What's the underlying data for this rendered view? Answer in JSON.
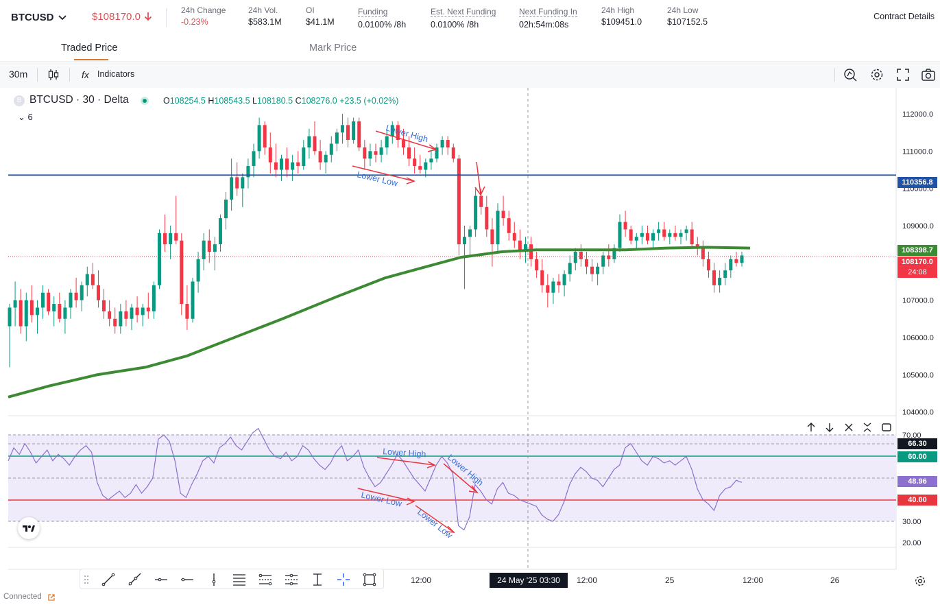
{
  "header": {
    "symbol": "BTCUSD",
    "last_price": "$108170.0",
    "stats": [
      {
        "label": "24h Change",
        "value": "-0.23%",
        "negative": true
      },
      {
        "label": "24h Vol.",
        "value": "$583.1M"
      },
      {
        "label": "OI",
        "value": "$41.1M"
      },
      {
        "label": "Funding",
        "value": "0.0100% /8h",
        "dotted": true
      },
      {
        "label": "Est. Next Funding",
        "value": "0.0100% /8h",
        "dotted": true
      },
      {
        "label": "Next Funding In",
        "value": "02h:54m:08s",
        "dotted": true
      },
      {
        "label": "24h High",
        "value": "$109451.0"
      },
      {
        "label": "24h Low",
        "value": "$107152.5"
      }
    ],
    "contract_details": "Contract Details"
  },
  "tabs": [
    {
      "label": "Traded Price",
      "active": true
    },
    {
      "label": "Mark Price",
      "active": false
    }
  ],
  "toolbar": {
    "timeframe": "30m",
    "indicators_label": "Indicators"
  },
  "legend": {
    "badge": "B",
    "title": "BTCUSD · 30 · Delta",
    "open_key": "O",
    "open": "108254.5",
    "high_key": "H",
    "high": "108543.5",
    "low_key": "L",
    "low": "108180.5",
    "close_key": "C",
    "close": "108276.0",
    "change": "+23.5 (+0.02%)",
    "collapsed_count": "6"
  },
  "price_axis": {
    "ticks": [
      "112000.0",
      "111000.0",
      "110000.0",
      "109000.0",
      "108000.0",
      "107000.0",
      "106000.0",
      "105000.0",
      "104000.0"
    ],
    "tags": {
      "level_line": "110356.8",
      "ma_value": "108398.7",
      "current": "108170.0",
      "countdown": "24:08"
    }
  },
  "rsi_axis": {
    "ticks": [
      "70.00",
      "30.00",
      "20.00"
    ],
    "tags": {
      "upper_band": "66.30",
      "upper_level": "60.00",
      "rsi_value": "48.96",
      "lower_level": "40.00"
    }
  },
  "annotations": {
    "price_lower_high": "Lower High",
    "price_lower_low": "Lower Low",
    "rsi_lower_high_1": "Lower High",
    "rsi_lower_high_2": "Lower High",
    "rsi_lower_low_1": "Lower Low",
    "rsi_lower_low_2": "Lower Low"
  },
  "time_axis": {
    "labels": [
      "12:00",
      "12:00",
      "25",
      "12:00",
      "26"
    ],
    "crosshair_time": "24 May '25   03:30"
  },
  "status": {
    "connection": "Connected"
  },
  "colors": {
    "up": "#089981",
    "down": "#f23645",
    "level_line": "#1e53a8",
    "ma": "#3d8a34",
    "rsi_line": "#8c6fcf",
    "rsi_band": "#f0ebfa",
    "annotation_arrow": "#e8363f",
    "annotation_text": "#3a6fd8"
  },
  "chart_data": {
    "type": "candlestick",
    "title": "BTCUSD · 30 · Delta",
    "ylim": [
      103900,
      112700
    ],
    "level_line": 110356.8,
    "current_price": 108170.0,
    "ma_last": 108398.7,
    "candles": [
      [
        106300,
        106900,
        105200,
        106800
      ],
      [
        106800,
        107500,
        106300,
        107000
      ],
      [
        107000,
        107300,
        106100,
        106300
      ],
      [
        106300,
        107200,
        105900,
        107000
      ],
      [
        107000,
        107400,
        106400,
        106600
      ],
      [
        106600,
        107000,
        106100,
        106800
      ],
      [
        106800,
        107400,
        106500,
        107200
      ],
      [
        107200,
        107300,
        106600,
        106700
      ],
      [
        106700,
        107100,
        106300,
        106900
      ],
      [
        106900,
        107200,
        106400,
        106500
      ],
      [
        106500,
        107000,
        106100,
        106800
      ],
      [
        106800,
        107300,
        106500,
        107200
      ],
      [
        107200,
        107600,
        106800,
        107000
      ],
      [
        107000,
        107500,
        106700,
        107400
      ],
      [
        107400,
        107900,
        107100,
        107700
      ],
      [
        107700,
        108000,
        107300,
        107400
      ],
      [
        107400,
        107800,
        106800,
        107000
      ],
      [
        107000,
        107300,
        106500,
        106700
      ],
      [
        106700,
        107000,
        106300,
        106500
      ],
      [
        106500,
        106800,
        106100,
        106300
      ],
      [
        106300,
        106900,
        106100,
        106700
      ],
      [
        106700,
        107000,
        106300,
        106500
      ],
      [
        106500,
        106900,
        106200,
        106800
      ],
      [
        106800,
        107100,
        106400,
        106600
      ],
      [
        106600,
        106900,
        106300,
        106800
      ],
      [
        106800,
        107200,
        106500,
        106700
      ],
      [
        106700,
        107500,
        106500,
        107400
      ],
      [
        107400,
        108900,
        107300,
        108800
      ],
      [
        108800,
        109300,
        108300,
        108500
      ],
      [
        108500,
        109000,
        108100,
        108800
      ],
      [
        108800,
        109800,
        108500,
        108600
      ],
      [
        108600,
        108800,
        106600,
        106900
      ],
      [
        106900,
        107400,
        106200,
        106500
      ],
      [
        106500,
        107600,
        106400,
        107500
      ],
      [
        107500,
        108300,
        107200,
        108100
      ],
      [
        108100,
        108800,
        107800,
        108600
      ],
      [
        108600,
        108900,
        108000,
        108300
      ],
      [
        108300,
        108700,
        107800,
        108500
      ],
      [
        108500,
        109300,
        108300,
        109200
      ],
      [
        109200,
        109900,
        108900,
        109700
      ],
      [
        109700,
        110800,
        109400,
        110300
      ],
      [
        110300,
        110700,
        109800,
        110000
      ],
      [
        110000,
        110400,
        109500,
        110300
      ],
      [
        110300,
        110800,
        110000,
        110600
      ],
      [
        110600,
        111200,
        110300,
        111000
      ],
      [
        111000,
        111900,
        110800,
        111700
      ],
      [
        111700,
        111800,
        110900,
        111100
      ],
      [
        111100,
        111500,
        110400,
        110700
      ],
      [
        110700,
        111200,
        110300,
        110500
      ],
      [
        110500,
        110900,
        110200,
        110800
      ],
      [
        110800,
        111100,
        110300,
        110500
      ],
      [
        110500,
        110900,
        110200,
        110700
      ],
      [
        110700,
        111000,
        110400,
        110600
      ],
      [
        110600,
        111300,
        110500,
        111100
      ],
      [
        111100,
        111600,
        110800,
        111400
      ],
      [
        111400,
        111800,
        110900,
        111000
      ],
      [
        111000,
        111300,
        110500,
        110700
      ],
      [
        110700,
        111000,
        110400,
        110900
      ],
      [
        110900,
        111400,
        110700,
        111200
      ],
      [
        111200,
        111600,
        111000,
        111500
      ],
      [
        111500,
        112000,
        111200,
        111700
      ],
      [
        111700,
        111900,
        111100,
        111300
      ],
      [
        111300,
        111900,
        111200,
        111800
      ],
      [
        111800,
        111900,
        111000,
        111100
      ],
      [
        111100,
        111300,
        110500,
        110800
      ],
      [
        110800,
        111200,
        110600,
        111000
      ],
      [
        111000,
        111200,
        110700,
        110900
      ],
      [
        110900,
        111300,
        110700,
        111100
      ],
      [
        111100,
        111600,
        110900,
        111400
      ],
      [
        111400,
        111800,
        111200,
        111700
      ],
      [
        111700,
        111800,
        111100,
        111300
      ],
      [
        111300,
        111600,
        110900,
        111100
      ],
      [
        111100,
        111400,
        110600,
        110800
      ],
      [
        110800,
        111100,
        110400,
        110600
      ],
      [
        110600,
        110900,
        110400,
        110500
      ],
      [
        110500,
        110800,
        110300,
        110700
      ],
      [
        110700,
        111000,
        110500,
        110800
      ],
      [
        110800,
        111200,
        110700,
        111100
      ],
      [
        111100,
        111400,
        110900,
        111300
      ],
      [
        111300,
        111400,
        110900,
        111100
      ],
      [
        111100,
        111200,
        110700,
        110800
      ],
      [
        110800,
        110900,
        108200,
        108500
      ],
      [
        108500,
        109000,
        107300,
        108700
      ],
      [
        108700,
        109000,
        108200,
        108900
      ],
      [
        108900,
        110000,
        108700,
        109800
      ],
      [
        109800,
        110000,
        109300,
        109500
      ],
      [
        109500,
        109800,
        108700,
        108900
      ],
      [
        108900,
        109200,
        107900,
        108500
      ],
      [
        108500,
        109600,
        108300,
        109400
      ],
      [
        109400,
        109800,
        109000,
        109200
      ],
      [
        109200,
        109400,
        108600,
        108800
      ],
      [
        108800,
        109100,
        108400,
        108600
      ],
      [
        108600,
        108900,
        108100,
        108300
      ],
      [
        108300,
        108700,
        108000,
        108500
      ],
      [
        108500,
        108700,
        107900,
        108100
      ],
      [
        108100,
        108300,
        107600,
        107800
      ],
      [
        107800,
        108100,
        107200,
        107400
      ],
      [
        107400,
        107700,
        106800,
        107200
      ],
      [
        107200,
        107600,
        106900,
        107500
      ],
      [
        107500,
        107700,
        107200,
        107400
      ],
      [
        107400,
        107800,
        107100,
        107700
      ],
      [
        107700,
        108200,
        107500,
        108000
      ],
      [
        108000,
        108400,
        107800,
        108300
      ],
      [
        108300,
        108500,
        107900,
        108100
      ],
      [
        108100,
        108300,
        107700,
        107900
      ],
      [
        107900,
        108100,
        107500,
        107700
      ],
      [
        107700,
        108000,
        107400,
        107900
      ],
      [
        107900,
        108300,
        107700,
        108200
      ],
      [
        108200,
        108500,
        107900,
        108100
      ],
      [
        108100,
        108500,
        108000,
        108400
      ],
      [
        108400,
        109300,
        108300,
        109100
      ],
      [
        109100,
        109400,
        108700,
        108900
      ],
      [
        108900,
        109000,
        108500,
        108600
      ],
      [
        108600,
        108800,
        108400,
        108700
      ],
      [
        108700,
        109000,
        108500,
        108800
      ],
      [
        108800,
        109000,
        108500,
        108600
      ],
      [
        108600,
        108900,
        108400,
        108800
      ],
      [
        108800,
        109100,
        108600,
        108900
      ],
      [
        108900,
        109100,
        108600,
        108700
      ],
      [
        108700,
        108900,
        108500,
        108800
      ],
      [
        108800,
        109000,
        108600,
        108700
      ],
      [
        108700,
        108900,
        108500,
        108800
      ],
      [
        108800,
        109000,
        108600,
        108900
      ],
      [
        108900,
        109100,
        108400,
        108500
      ],
      [
        108500,
        108700,
        108200,
        108400
      ],
      [
        108400,
        108600,
        107900,
        108100
      ],
      [
        108100,
        108300,
        107600,
        107800
      ],
      [
        107800,
        108000,
        107200,
        107400
      ],
      [
        107400,
        107800,
        107200,
        107600
      ],
      [
        107600,
        108000,
        107400,
        107800
      ],
      [
        107800,
        108200,
        107600,
        108100
      ],
      [
        108100,
        108300,
        107900,
        108000
      ],
      [
        108000,
        108300,
        107900,
        108200
      ]
    ],
    "ma": [
      [
        0,
        104400
      ],
      [
        60,
        104700
      ],
      [
        130,
        105000
      ],
      [
        200,
        105200
      ],
      [
        260,
        105500
      ],
      [
        330,
        106000
      ],
      [
        400,
        106500
      ],
      [
        480,
        107100
      ],
      [
        550,
        107600
      ],
      [
        610,
        107900
      ],
      [
        660,
        108150
      ],
      [
        720,
        108300
      ],
      [
        770,
        108350
      ],
      [
        840,
        108350
      ],
      [
        900,
        108350
      ],
      [
        960,
        108400
      ],
      [
        1020,
        108420
      ],
      [
        1082,
        108400
      ]
    ],
    "rsi": [
      58,
      64,
      61,
      66,
      62,
      57,
      60,
      63,
      58,
      61,
      59,
      56,
      60,
      63,
      65,
      62,
      48,
      42,
      40,
      42,
      44,
      41,
      43,
      47,
      43,
      46,
      50,
      68,
      70,
      67,
      58,
      43,
      41,
      47,
      52,
      58,
      60,
      57,
      64,
      66,
      69,
      65,
      63,
      67,
      71,
      73,
      68,
      63,
      60,
      59,
      62,
      58,
      60,
      65,
      63,
      59,
      56,
      54,
      57,
      62,
      65,
      58,
      60,
      63,
      55,
      50,
      46,
      48,
      52,
      56,
      61,
      58,
      54,
      50,
      47,
      44,
      50,
      56,
      60,
      57,
      52,
      28,
      26,
      32,
      47,
      44,
      40,
      38,
      45,
      48,
      43,
      42,
      40,
      39,
      38,
      37,
      33,
      31,
      30,
      33,
      39,
      47,
      52,
      55,
      53,
      50,
      49,
      46,
      50,
      54,
      56,
      64,
      66,
      62,
      58,
      56,
      60,
      59,
      57,
      58,
      56,
      58,
      60,
      54,
      45,
      40,
      38,
      35,
      42,
      45,
      46,
      49,
      48
    ]
  }
}
